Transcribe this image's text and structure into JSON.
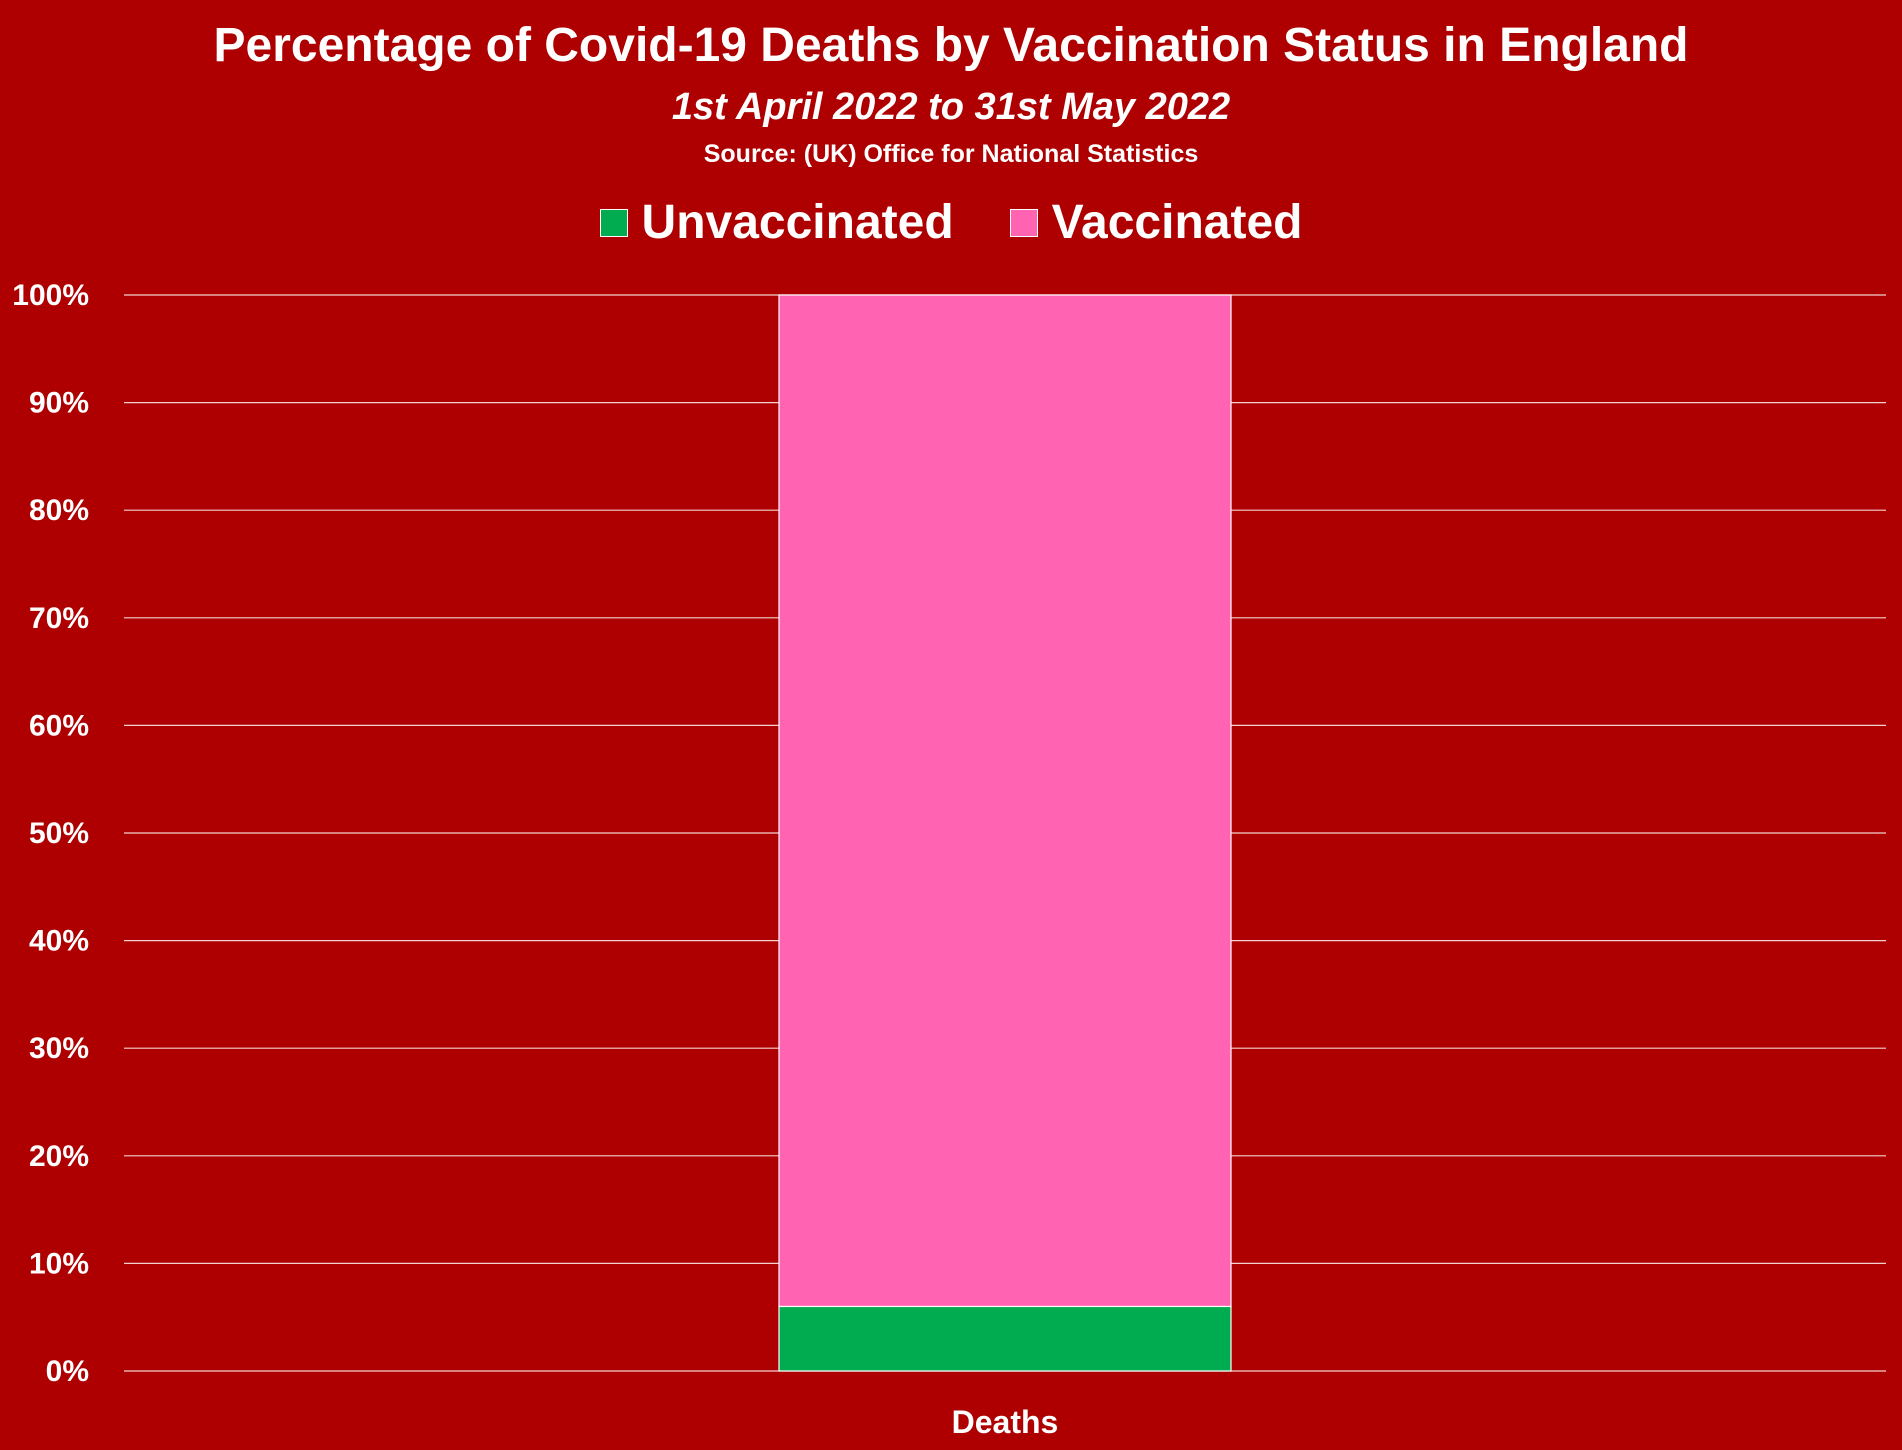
{
  "chart_data": {
    "type": "bar",
    "stacked": true,
    "percent": true,
    "title": "Percentage of Covid-19 Deaths by Vaccination Status in England",
    "subtitle": "1st April 2022 to 31st May 2022",
    "source": "Source: (UK)  Office for National Statistics",
    "categories": [
      "Deaths"
    ],
    "series": [
      {
        "name": "Unvaccinated",
        "values": [
          6
        ],
        "color": "#00AC4F"
      },
      {
        "name": "Vaccinated",
        "values": [
          94
        ],
        "color": "#FF63B1"
      }
    ],
    "ylim": [
      0,
      100
    ],
    "yticks": [
      "0%",
      "10%",
      "20%",
      "30%",
      "40%",
      "50%",
      "60%",
      "70%",
      "80%",
      "90%",
      "100%"
    ],
    "grid": true,
    "legend_position": "top",
    "background_color": "#AE0000",
    "text_color": "#FFFFFF"
  }
}
